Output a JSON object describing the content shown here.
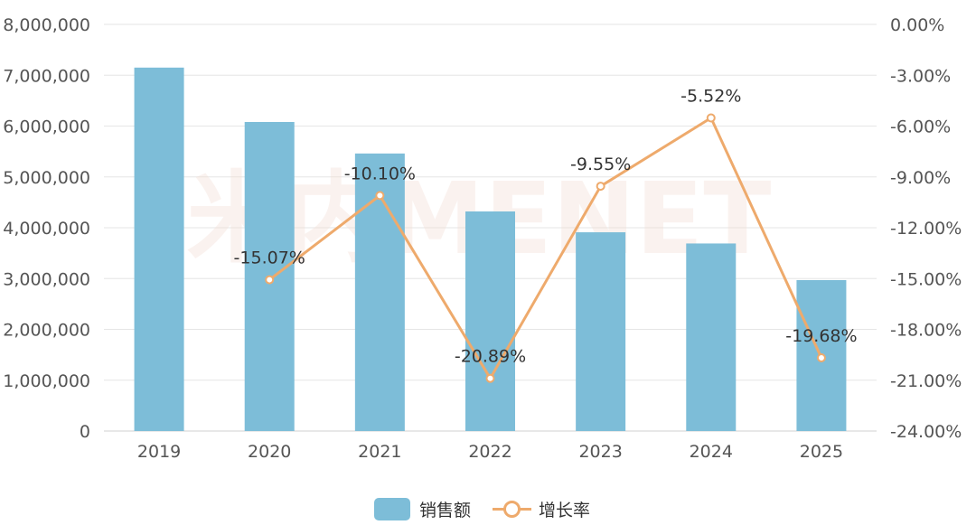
{
  "chart_data": {
    "type": "bar",
    "categories": [
      "2019",
      "2020",
      "2021",
      "2022",
      "2023",
      "2024",
      "2025"
    ],
    "series": [
      {
        "name": "销售额",
        "type": "bar",
        "axis": "left",
        "values": [
          7150000,
          6080000,
          5460000,
          4320000,
          3910000,
          3690000,
          2970000
        ]
      },
      {
        "name": "增长率",
        "type": "line",
        "axis": "right",
        "values": [
          null,
          -15.07,
          -10.1,
          -20.89,
          -9.55,
          -5.52,
          -19.68
        ],
        "labels": [
          null,
          "-15.07%",
          "-10.10%",
          "-20.89%",
          "-9.55%",
          "-5.52%",
          "-19.68%"
        ]
      }
    ],
    "left_axis": {
      "ylim": [
        0,
        8000000
      ],
      "ticks": [
        0,
        1000000,
        2000000,
        3000000,
        4000000,
        5000000,
        6000000,
        7000000,
        8000000
      ],
      "tick_labels": [
        "0",
        "1,000,000",
        "2,000,000",
        "3,000,000",
        "4,000,000",
        "5,000,000",
        "6,000,000",
        "7,000,000",
        "8,000,000"
      ]
    },
    "right_axis": {
      "ylim": [
        -24,
        0
      ],
      "ticks": [
        -24,
        -21,
        -18,
        -15,
        -12,
        -9,
        -6,
        -3,
        0
      ],
      "tick_labels": [
        "-24.00%",
        "-21.00%",
        "-18.00%",
        "-15.00%",
        "-12.00%",
        "-9.00%",
        "-6.00%",
        "-3.00%",
        "0.00%"
      ]
    },
    "grid": true,
    "legend_position": "bottom-center",
    "watermark": "米内MENET",
    "colors": {
      "bar": "#7dbdd8",
      "line": "#eeaa6c",
      "grid": "#e6e6e6",
      "watermark": "#f3dcd2"
    }
  }
}
